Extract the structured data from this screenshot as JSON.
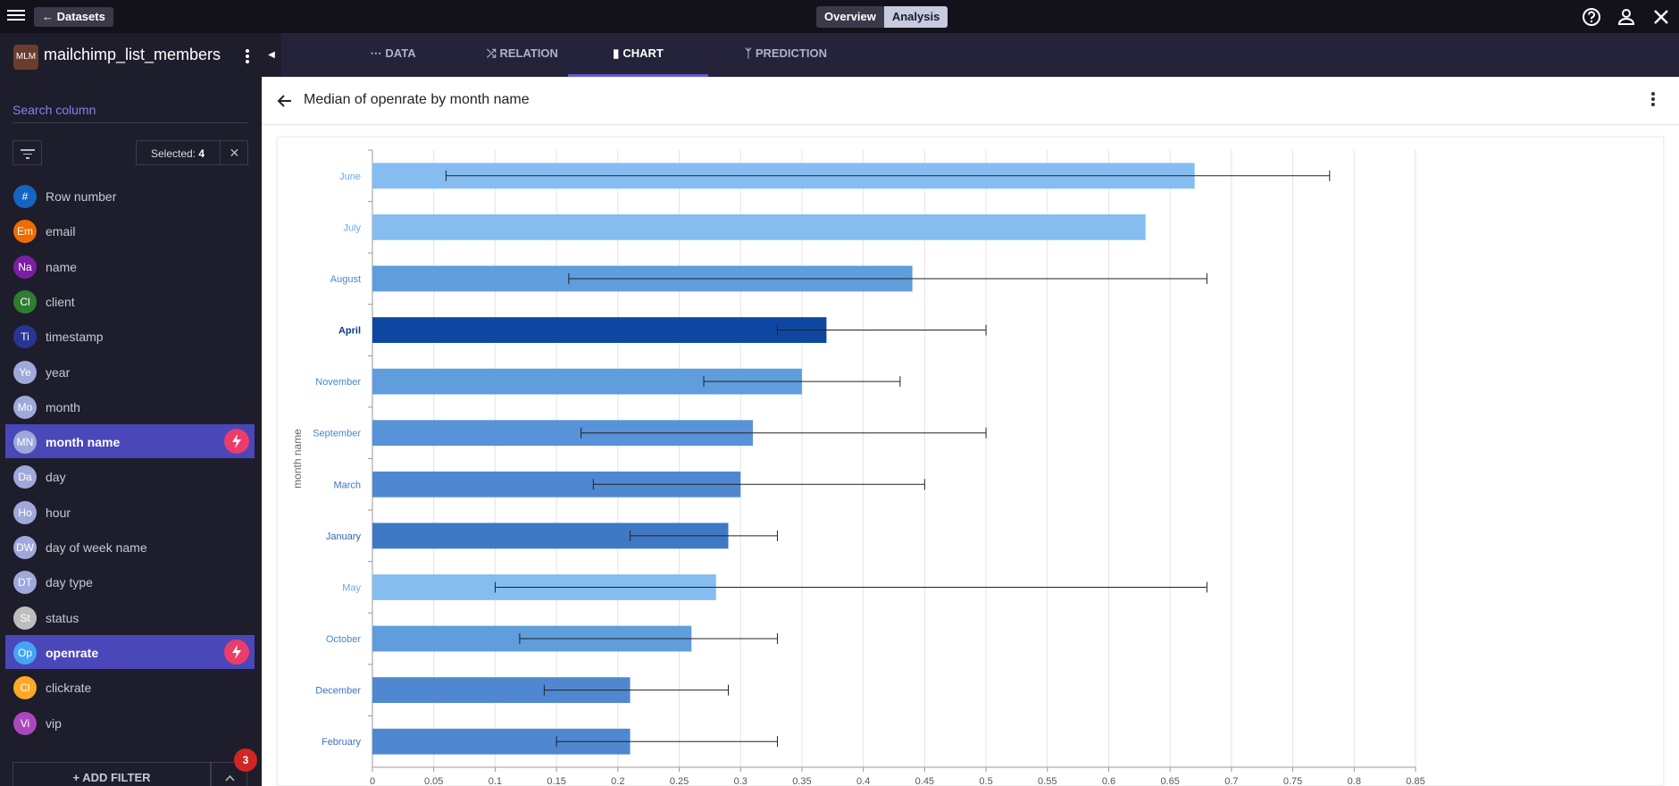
{
  "topbar": {
    "back_label": "Datasets",
    "views": [
      {
        "label": "Overview",
        "selected": false
      },
      {
        "label": "Analysis",
        "selected": true
      }
    ],
    "icons": [
      "help-icon",
      "user-icon",
      "close-icon"
    ]
  },
  "sidebar": {
    "dataset_badge": "MLM",
    "dataset_name": "mailchimp_list_members",
    "search_placeholder": "Search column",
    "selected_label": "Selected:",
    "selected_count": "4",
    "columns": [
      {
        "abbr": "#",
        "label": "Row number",
        "color": "#1565c0",
        "active": false
      },
      {
        "abbr": "Em",
        "label": "email",
        "color": "#ef6c00",
        "active": false
      },
      {
        "abbr": "Na",
        "label": "name",
        "color": "#7b1fa2",
        "active": false
      },
      {
        "abbr": "Cl",
        "label": "client",
        "color": "#2e7d32",
        "active": false
      },
      {
        "abbr": "Ti",
        "label": "timestamp",
        "color": "#283593",
        "active": false
      },
      {
        "abbr": "Ye",
        "label": "year",
        "color": "#9fa8da",
        "active": false
      },
      {
        "abbr": "Mo",
        "label": "month",
        "color": "#9fa8da",
        "active": false
      },
      {
        "abbr": "MN",
        "label": "month name",
        "color": "#9fa8da",
        "active": true
      },
      {
        "abbr": "Da",
        "label": "day",
        "color": "#9fa8da",
        "active": false
      },
      {
        "abbr": "Ho",
        "label": "hour",
        "color": "#9fa8da",
        "active": false
      },
      {
        "abbr": "DW",
        "label": "day of week name",
        "color": "#9fa8da",
        "active": false
      },
      {
        "abbr": "DT",
        "label": "day type",
        "color": "#9fa8da",
        "active": false
      },
      {
        "abbr": "St",
        "label": "status",
        "color": "#bdbdbd",
        "active": false
      },
      {
        "abbr": "Op",
        "label": "openrate",
        "color": "#42a5f5",
        "active": true
      },
      {
        "abbr": "Cl",
        "label": "clickrate",
        "color": "#ffa726",
        "active": false
      },
      {
        "abbr": "Vi",
        "label": "vip",
        "color": "#ab47bc",
        "active": false
      }
    ],
    "add_filter_label": "+ ADD FILTER",
    "filter_badge_count": "3"
  },
  "tabs": [
    {
      "label": "DATA",
      "icon": "grid-icon",
      "active": false
    },
    {
      "label": "RELATION",
      "icon": "shuffle-icon",
      "active": false
    },
    {
      "label": "CHART",
      "icon": "bar-chart-icon",
      "active": true
    },
    {
      "label": "PREDICTION",
      "icon": "fork-icon",
      "active": false
    }
  ],
  "chart_header": {
    "title": "Median of openrate by month name"
  },
  "chart_data": {
    "type": "bar",
    "orientation": "horizontal",
    "title": "Median of openrate by month name",
    "ylabel": "month name",
    "xlabel": "",
    "xlim": [
      0,
      0.85
    ],
    "xticks": [
      "0",
      "0.05",
      "0.1",
      "0.15",
      "0.2",
      "0.25",
      "0.3",
      "0.35",
      "0.4",
      "0.45",
      "0.5",
      "0.55",
      "0.6",
      "0.65",
      "0.7",
      "0.75",
      "0.8",
      "0.85"
    ],
    "grid": true,
    "categories": [
      "June",
      "July",
      "August",
      "April",
      "November",
      "September",
      "March",
      "January",
      "May",
      "October",
      "December",
      "February"
    ],
    "values": [
      0.67,
      0.63,
      0.44,
      0.37,
      0.35,
      0.31,
      0.3,
      0.29,
      0.28,
      0.26,
      0.21,
      0.21
    ],
    "error_low": [
      0.06,
      null,
      0.16,
      0.33,
      0.27,
      0.17,
      0.18,
      0.21,
      0.1,
      0.12,
      0.14,
      0.15
    ],
    "error_high": [
      0.78,
      null,
      0.68,
      0.5,
      0.43,
      0.5,
      0.45,
      0.33,
      0.68,
      0.33,
      0.29,
      0.33
    ],
    "bar_colors": [
      "#86bdf0",
      "#86bdf0",
      "#5f9ddc",
      "#0d47a1",
      "#5f9ddc",
      "#5892d8",
      "#4f88d0",
      "#3f78c4",
      "#86bdf0",
      "#5f9ddc",
      "#4f88d0",
      "#4f88d0"
    ],
    "label_colors": [
      "#6aa8e8",
      "#6aa8e8",
      "#4a86cc",
      "#0d3a8a",
      "#4a86cc",
      "#4a86cc",
      "#3b74bf",
      "#2f66b3",
      "#6aa8e8",
      "#4a86cc",
      "#3b74bf",
      "#3b74bf"
    ]
  }
}
